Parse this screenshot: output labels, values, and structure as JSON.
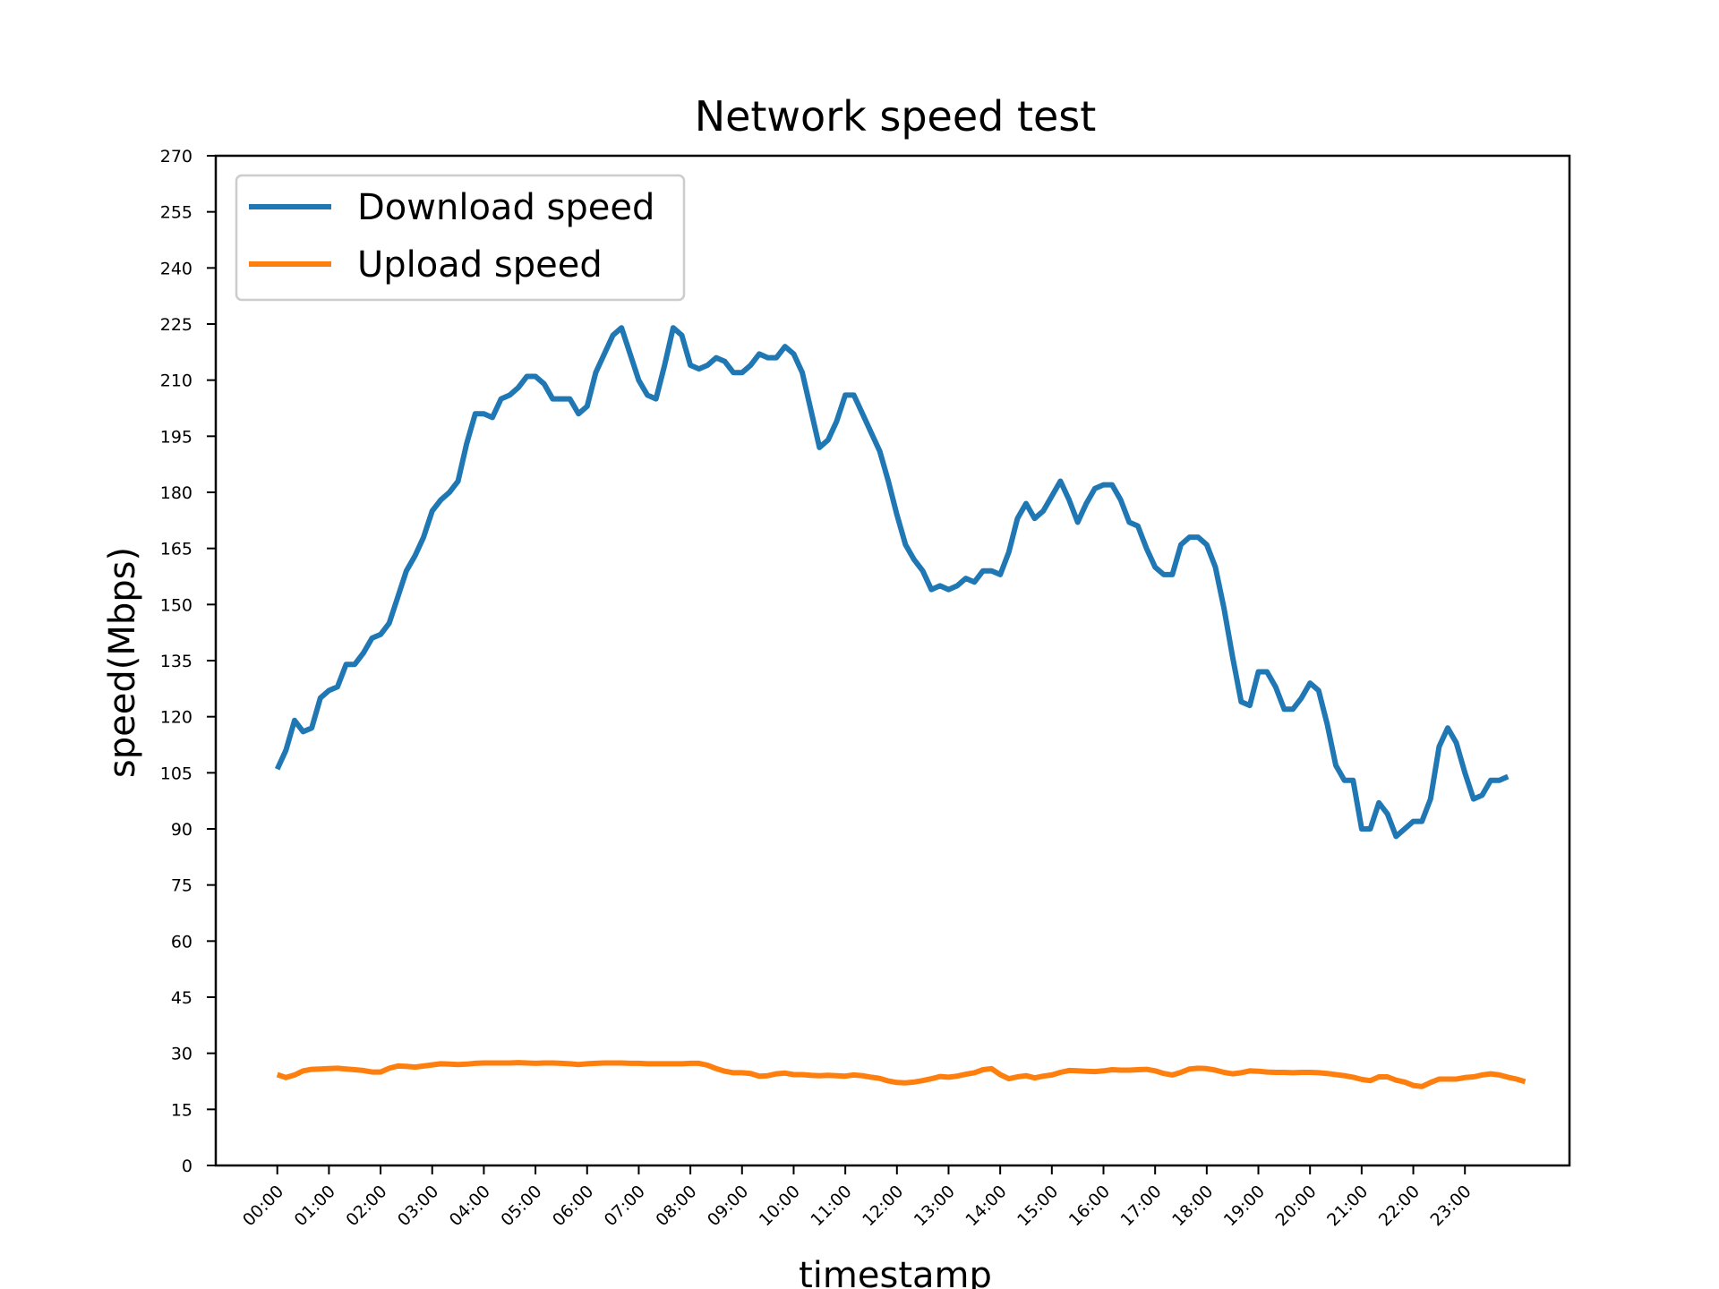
{
  "chart_data": {
    "type": "line",
    "title": "Network speed test",
    "xlabel": "timestamp",
    "ylabel": "speed(Mbps)",
    "ylim": [
      0,
      270
    ],
    "yticks": [
      0,
      15,
      30,
      45,
      60,
      75,
      90,
      105,
      120,
      135,
      150,
      165,
      180,
      195,
      210,
      225,
      240,
      255,
      270
    ],
    "xtick_labels": [
      "00:00",
      "01:00",
      "02:00",
      "03:00",
      "04:00",
      "05:00",
      "06:00",
      "07:00",
      "08:00",
      "09:00",
      "10:00",
      "11:00",
      "12:00",
      "13:00",
      "14:00",
      "15:00",
      "16:00",
      "17:00",
      "18:00",
      "19:00",
      "20:00",
      "21:00",
      "22:00",
      "23:00"
    ],
    "x_interval_minutes": 10,
    "grid": false,
    "legend": "top-left",
    "series": [
      {
        "name": "Download speed",
        "color": "#1f77b4",
        "values": [
          106,
          111,
          119,
          116,
          117,
          125,
          127,
          128,
          134,
          134,
          137,
          141,
          142,
          145,
          152,
          159,
          163,
          168,
          175,
          178,
          180,
          183,
          193,
          201,
          201,
          200,
          205,
          206,
          208,
          211,
          211,
          209,
          205,
          205,
          205,
          201,
          203,
          212,
          217,
          222,
          224,
          217,
          210,
          206,
          205,
          214,
          224,
          222,
          214,
          213,
          214,
          216,
          215,
          212,
          212,
          214,
          217,
          216,
          216,
          219,
          217,
          212,
          202,
          192,
          194,
          199,
          206,
          206,
          201,
          196,
          191,
          183,
          174,
          166,
          162,
          159,
          154,
          155,
          154,
          155,
          157,
          156,
          159,
          159,
          158,
          164,
          173,
          177,
          173,
          175,
          179,
          183,
          178,
          172,
          177,
          181,
          182,
          182,
          178,
          172,
          171,
          165,
          160,
          158,
          158,
          166,
          168,
          168,
          166,
          160,
          149,
          136,
          124,
          123,
          132,
          132,
          128,
          122,
          122,
          125,
          129,
          127,
          118,
          107,
          103,
          103,
          90,
          90,
          97,
          94,
          88,
          90,
          92,
          92,
          98,
          112,
          117,
          113,
          105,
          98,
          99,
          103,
          103,
          104
        ]
      },
      {
        "name": "Upload speed",
        "color": "#ff7f0e",
        "values": [
          24.3,
          23.5,
          24.2,
          25.3,
          25.7,
          25.8,
          25.9,
          26.0,
          25.8,
          25.6,
          25.4,
          25.0,
          25.0,
          26.0,
          26.6,
          26.5,
          26.3,
          26.6,
          26.9,
          27.2,
          27.1,
          27.0,
          27.1,
          27.3,
          27.4,
          27.4,
          27.4,
          27.4,
          27.5,
          27.4,
          27.3,
          27.4,
          27.4,
          27.3,
          27.2,
          27.0,
          27.2,
          27.3,
          27.4,
          27.4,
          27.4,
          27.3,
          27.3,
          27.2,
          27.2,
          27.2,
          27.2,
          27.2,
          27.3,
          27.3,
          26.8,
          25.9,
          25.2,
          24.8,
          24.8,
          24.6,
          23.9,
          24.0,
          24.5,
          24.7,
          24.3,
          24.3,
          24.1,
          24.0,
          24.1,
          24.0,
          23.9,
          24.2,
          24.0,
          23.6,
          23.3,
          22.6,
          22.2,
          22.1,
          22.3,
          22.7,
          23.2,
          23.8,
          23.6,
          23.9,
          24.4,
          24.8,
          25.6,
          25.9,
          24.3,
          23.2,
          23.7,
          24.0,
          23.4,
          23.9,
          24.2,
          24.9,
          25.4,
          25.3,
          25.2,
          25.1,
          25.3,
          25.6,
          25.5,
          25.5,
          25.6,
          25.7,
          25.3,
          24.6,
          24.2,
          24.9,
          25.8,
          26.0,
          25.9,
          25.5,
          24.9,
          24.5,
          24.8,
          25.3,
          25.2,
          25.0,
          24.9,
          24.9,
          24.8,
          24.9,
          24.9,
          24.8,
          24.6,
          24.3,
          24.0,
          23.6,
          23.0,
          22.7,
          23.7,
          23.7,
          22.8,
          22.3,
          21.4,
          21.1,
          22.2,
          23.1,
          23.1,
          23.1,
          23.5,
          23.7,
          24.2,
          24.5,
          24.2,
          23.6,
          23.1,
          22.4
        ]
      }
    ]
  }
}
